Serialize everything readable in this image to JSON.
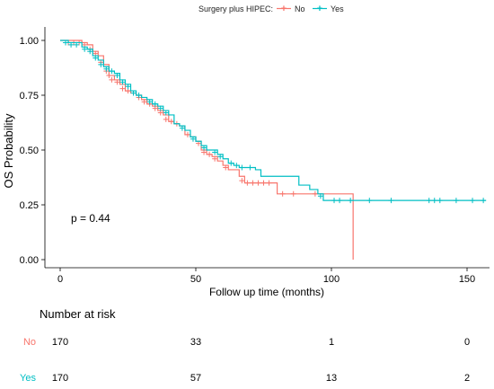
{
  "chart_data": {
    "type": "line",
    "subtype": "kaplan-meier",
    "title": "",
    "xlabel": "Follow up time (months)",
    "ylabel": "OS Probability",
    "xlim": [
      0,
      157
    ],
    "ylim": [
      0,
      1
    ],
    "x_ticks": [
      0,
      50,
      100,
      150
    ],
    "y_ticks": [
      "0.00",
      "0.25",
      "0.50",
      "0.75",
      "1.00"
    ],
    "grid": false,
    "legend": {
      "title": "Surgery plus HIPEC:",
      "placement": "top",
      "entries": [
        "No",
        "Yes"
      ]
    },
    "annotation": "p = 0.44",
    "colors": {
      "No": "#F8766D",
      "Yes": "#00BFC4"
    },
    "series": [
      {
        "name": "No",
        "steps": [
          [
            0,
            1.0
          ],
          [
            8,
            0.99
          ],
          [
            10,
            0.98
          ],
          [
            12,
            0.95
          ],
          [
            14,
            0.93
          ],
          [
            16,
            0.89
          ],
          [
            18,
            0.84
          ],
          [
            20,
            0.82
          ],
          [
            22,
            0.8
          ],
          [
            24,
            0.77
          ],
          [
            26,
            0.76
          ],
          [
            28,
            0.75
          ],
          [
            30,
            0.73
          ],
          [
            32,
            0.71
          ],
          [
            34,
            0.7
          ],
          [
            36,
            0.68
          ],
          [
            38,
            0.66
          ],
          [
            40,
            0.63
          ],
          [
            42,
            0.62
          ],
          [
            44,
            0.61
          ],
          [
            46,
            0.57
          ],
          [
            48,
            0.56
          ],
          [
            50,
            0.54
          ],
          [
            52,
            0.5
          ],
          [
            54,
            0.48
          ],
          [
            56,
            0.47
          ],
          [
            58,
            0.45
          ],
          [
            60,
            0.43
          ],
          [
            62,
            0.41
          ],
          [
            66,
            0.38
          ],
          [
            68,
            0.35
          ],
          [
            80,
            0.3
          ],
          [
            95,
            0.3
          ],
          [
            108,
            0.0
          ]
        ],
        "censor": [
          [
            3,
            0.99
          ],
          [
            5,
            0.99
          ],
          [
            7,
            0.99
          ],
          [
            9,
            0.98
          ],
          [
            11,
            0.96
          ],
          [
            13,
            0.94
          ],
          [
            15,
            0.9
          ],
          [
            17,
            0.86
          ],
          [
            18,
            0.84
          ],
          [
            19,
            0.82
          ],
          [
            21,
            0.81
          ],
          [
            23,
            0.78
          ],
          [
            25,
            0.77
          ],
          [
            27,
            0.76
          ],
          [
            29,
            0.74
          ],
          [
            31,
            0.72
          ],
          [
            33,
            0.71
          ],
          [
            35,
            0.69
          ],
          [
            37,
            0.67
          ],
          [
            39,
            0.64
          ],
          [
            41,
            0.63
          ],
          [
            43,
            0.62
          ],
          [
            47,
            0.57
          ],
          [
            51,
            0.53
          ],
          [
            53,
            0.49
          ],
          [
            55,
            0.48
          ],
          [
            57,
            0.46
          ],
          [
            61,
            0.42
          ],
          [
            67,
            0.36
          ],
          [
            69,
            0.35
          ],
          [
            71,
            0.35
          ],
          [
            73,
            0.35
          ],
          [
            75,
            0.35
          ],
          [
            77,
            0.35
          ],
          [
            82,
            0.3
          ],
          [
            86,
            0.3
          ],
          [
            94,
            0.3
          ]
        ]
      },
      {
        "name": "Yes",
        "steps": [
          [
            0,
            1.0
          ],
          [
            3,
            0.99
          ],
          [
            8,
            0.97
          ],
          [
            10,
            0.96
          ],
          [
            12,
            0.93
          ],
          [
            14,
            0.91
          ],
          [
            16,
            0.88
          ],
          [
            18,
            0.86
          ],
          [
            20,
            0.85
          ],
          [
            22,
            0.82
          ],
          [
            24,
            0.8
          ],
          [
            26,
            0.77
          ],
          [
            28,
            0.75
          ],
          [
            30,
            0.74
          ],
          [
            32,
            0.73
          ],
          [
            34,
            0.71
          ],
          [
            36,
            0.7
          ],
          [
            38,
            0.68
          ],
          [
            40,
            0.66
          ],
          [
            42,
            0.62
          ],
          [
            44,
            0.61
          ],
          [
            46,
            0.59
          ],
          [
            48,
            0.56
          ],
          [
            50,
            0.54
          ],
          [
            52,
            0.52
          ],
          [
            54,
            0.5
          ],
          [
            58,
            0.48
          ],
          [
            60,
            0.46
          ],
          [
            62,
            0.44
          ],
          [
            64,
            0.43
          ],
          [
            66,
            0.42
          ],
          [
            72,
            0.41
          ],
          [
            74,
            0.38
          ],
          [
            88,
            0.34
          ],
          [
            92,
            0.32
          ],
          [
            95,
            0.3
          ],
          [
            97,
            0.27
          ],
          [
            157,
            0.27
          ]
        ],
        "censor": [
          [
            2,
            0.99
          ],
          [
            4,
            0.98
          ],
          [
            6,
            0.98
          ],
          [
            9,
            0.96
          ],
          [
            11,
            0.95
          ],
          [
            13,
            0.92
          ],
          [
            15,
            0.89
          ],
          [
            17,
            0.87
          ],
          [
            19,
            0.86
          ],
          [
            21,
            0.84
          ],
          [
            23,
            0.81
          ],
          [
            25,
            0.79
          ],
          [
            27,
            0.76
          ],
          [
            29,
            0.75
          ],
          [
            33,
            0.72
          ],
          [
            35,
            0.71
          ],
          [
            37,
            0.69
          ],
          [
            39,
            0.67
          ],
          [
            45,
            0.6
          ],
          [
            49,
            0.55
          ],
          [
            53,
            0.51
          ],
          [
            57,
            0.49
          ],
          [
            59,
            0.47
          ],
          [
            63,
            0.44
          ],
          [
            65,
            0.43
          ],
          [
            67,
            0.42
          ],
          [
            70,
            0.42
          ],
          [
            96,
            0.29
          ],
          [
            101,
            0.27
          ],
          [
            103,
            0.27
          ],
          [
            107,
            0.27
          ],
          [
            114,
            0.27
          ],
          [
            122,
            0.27
          ],
          [
            136,
            0.27
          ],
          [
            138,
            0.27
          ],
          [
            140,
            0.27
          ],
          [
            146,
            0.27
          ],
          [
            152,
            0.27
          ],
          [
            156,
            0.27
          ]
        ]
      }
    ],
    "risk_table": {
      "title": "Number at risk",
      "time_points": [
        0,
        50,
        100,
        150
      ],
      "rows": [
        {
          "name": "No",
          "values": [
            170,
            33,
            1,
            0
          ]
        },
        {
          "name": "Yes",
          "values": [
            170,
            57,
            13,
            2
          ]
        }
      ]
    }
  }
}
